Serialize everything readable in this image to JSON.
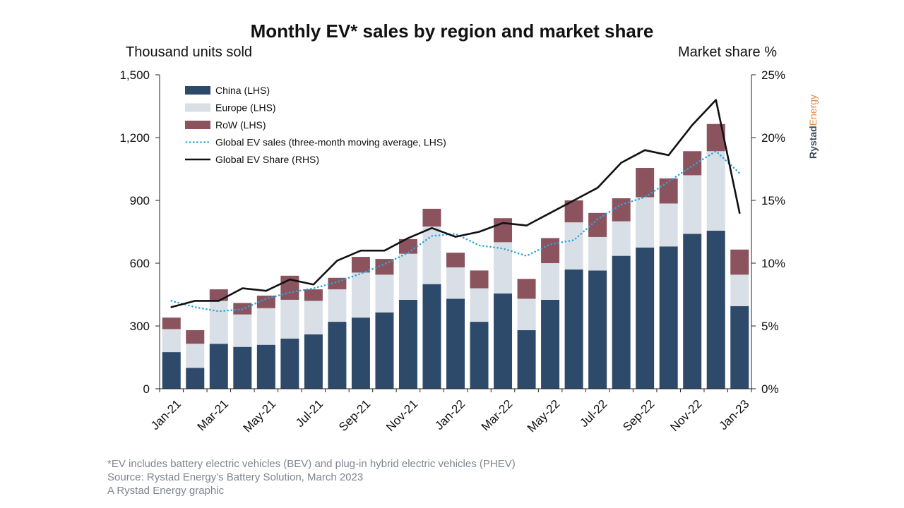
{
  "chart_data": {
    "type": "bar",
    "stacked": true,
    "title": "Monthly EV* sales by region and market share",
    "ylabel_left": "Thousand units sold",
    "ylabel_right": "Market share %",
    "ylim_left": [
      0,
      1500
    ],
    "ylim_right": [
      0,
      25
    ],
    "yticks_left": [
      "0",
      "300",
      "600",
      "900",
      "1,200",
      "1,500"
    ],
    "yticks_right": [
      "0%",
      "5%",
      "10%",
      "15%",
      "20%",
      "25%"
    ],
    "xtick_labels": [
      "Jan-21",
      "Mar-21",
      "May-21",
      "Jul-21",
      "Sep-21",
      "Nov-21",
      "Jan-22",
      "Mar-22",
      "May-22",
      "Jul-22",
      "Sep-22",
      "Nov-22",
      "Jan-23"
    ],
    "categories": [
      "Jan-21",
      "Feb-21",
      "Mar-21",
      "Apr-21",
      "May-21",
      "Jun-21",
      "Jul-21",
      "Aug-21",
      "Sep-21",
      "Oct-21",
      "Nov-21",
      "Dec-21",
      "Jan-22",
      "Feb-22",
      "Mar-22",
      "Apr-22",
      "May-22",
      "Jun-22",
      "Jul-22",
      "Aug-22",
      "Sep-22",
      "Oct-22",
      "Nov-22",
      "Dec-22",
      "Jan-23"
    ],
    "series": [
      {
        "name": "China (LHS)",
        "color": "#2e4a6b",
        "kind": "bar",
        "values": [
          175,
          100,
          215,
          200,
          210,
          240,
          260,
          320,
          340,
          365,
          425,
          500,
          430,
          320,
          455,
          280,
          425,
          570,
          565,
          635,
          675,
          680,
          740,
          755,
          395
        ]
      },
      {
        "name": "Europe (LHS)",
        "color": "#d9dfe6",
        "kind": "bar",
        "values": [
          110,
          115,
          205,
          155,
          175,
          185,
          160,
          155,
          215,
          180,
          220,
          275,
          150,
          160,
          245,
          150,
          175,
          225,
          160,
          165,
          240,
          205,
          280,
          380,
          150
        ]
      },
      {
        "name": "RoW (LHS)",
        "color": "#8b535e",
        "kind": "bar",
        "values": [
          55,
          65,
          55,
          55,
          60,
          115,
          55,
          55,
          75,
          75,
          70,
          85,
          70,
          85,
          115,
          95,
          120,
          105,
          115,
          110,
          140,
          120,
          115,
          130,
          120
        ]
      },
      {
        "name": "Global EV sales (three-month moving average, LHS)",
        "color": "#2aa8e0",
        "kind": "line-dotted",
        "axis": "left",
        "values": [
          420,
          390,
          370,
          380,
          430,
          460,
          480,
          510,
          550,
          595,
          650,
          730,
          740,
          685,
          670,
          635,
          690,
          710,
          810,
          880,
          915,
          990,
          1065,
          1135,
          1030
        ]
      },
      {
        "name": "Global EV Share (RHS)",
        "color": "#111111",
        "kind": "line",
        "axis": "right",
        "values": [
          6.5,
          7.0,
          7.0,
          8.0,
          7.8,
          8.7,
          8.3,
          10.2,
          11.0,
          11.0,
          12.0,
          12.8,
          12.1,
          12.5,
          13.2,
          13.0,
          14.0,
          15.0,
          16.0,
          18.0,
          19.0,
          18.6,
          21.0,
          23.0,
          14.0
        ]
      }
    ]
  },
  "brand": {
    "part1": "Rystad",
    "part2": "Energy",
    "color1": "#3d4a5c",
    "color2": "#e8893a"
  },
  "footnotes": [
    "*EV includes battery electric vehicles (BEV) and plug-in hybrid electric vehicles (PHEV)",
    "Source: Rystad Energy's Battery Solution, March 2023",
    "A Rystad Energy graphic"
  ]
}
